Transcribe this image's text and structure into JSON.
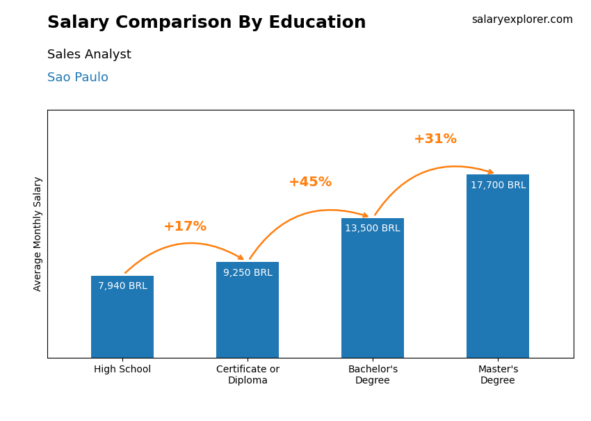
{
  "chart_data": {
    "type": "bar",
    "title": "Salary Comparison By Education",
    "subtitle": "Sales Analyst",
    "location": "Sao Paulo",
    "source": "salaryexplorer.com",
    "ylabel": "Average Monthly Salary",
    "categories": [
      "High School",
      "Certificate or\nDiploma",
      "Bachelor's\nDegree",
      "Master's\nDegree"
    ],
    "values": [
      7940,
      9250,
      13500,
      17700
    ],
    "value_labels": [
      "7,940 BRL",
      "9,250 BRL",
      "13,500 BRL",
      "17,700 BRL"
    ],
    "data_labels": true,
    "annotations": [
      "+17%",
      "+45%",
      "+31%"
    ],
    "ylim": [
      0,
      24000
    ],
    "tick_labels": "x",
    "grid": false
  }
}
